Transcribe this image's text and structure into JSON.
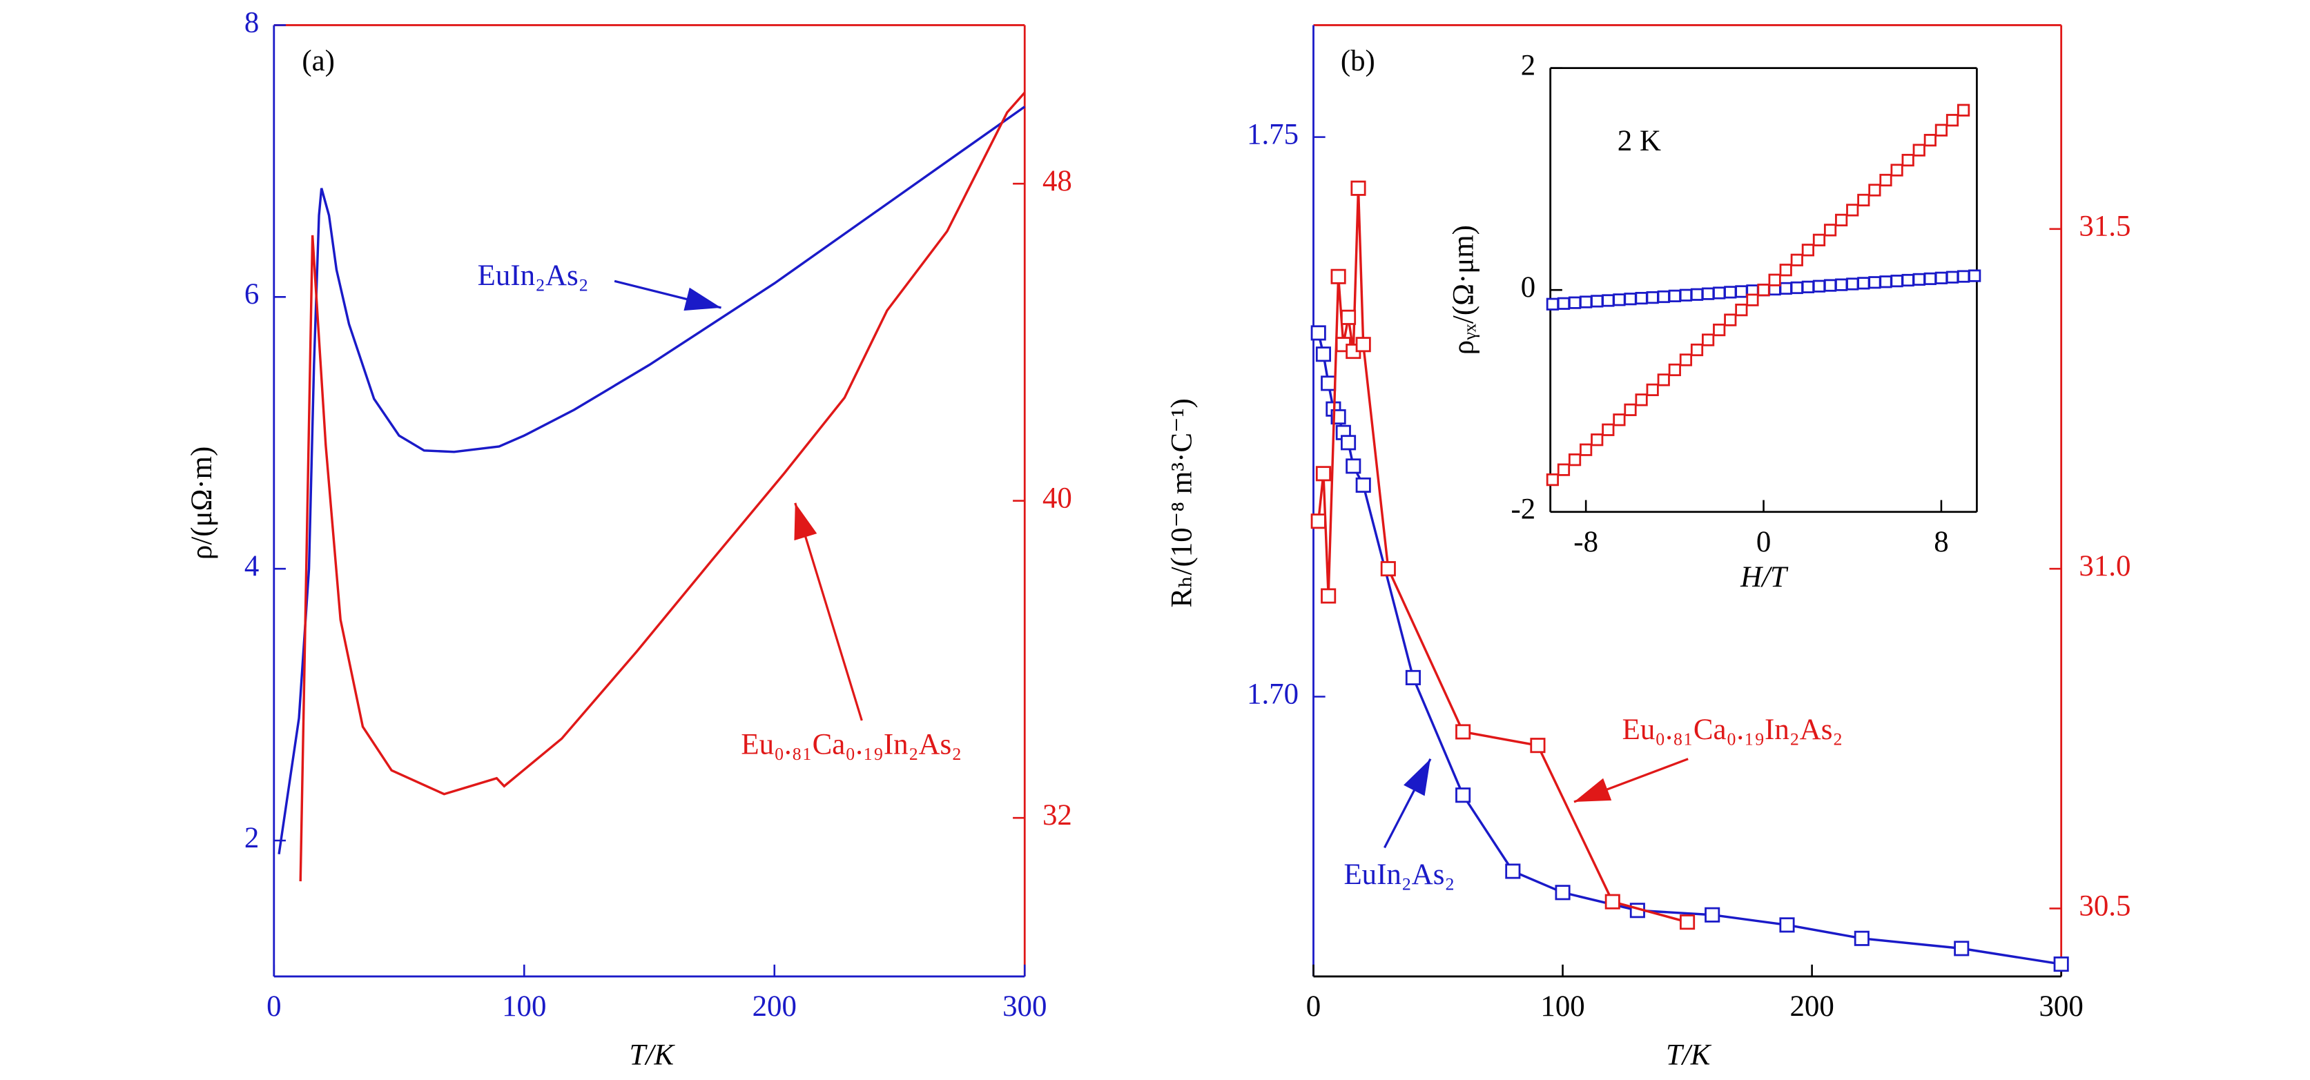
{
  "chart_data": [
    {
      "type": "line",
      "panel_label": "(a)",
      "xlabel": "T/K",
      "ylabel": "ρ/(μΩ·m)",
      "xlim": [
        0,
        300
      ],
      "xticks": [
        0,
        100,
        200,
        300
      ],
      "ylim": [
        1,
        8
      ],
      "yticks": [
        2,
        4,
        6,
        8
      ],
      "y2lim": [
        28,
        52
      ],
      "y2ticks": [
        32,
        40,
        48
      ],
      "spine_colors": {
        "left": "#1a1ac8",
        "right": "#e01818",
        "bottom": "#1a1ac8",
        "top": "#e01818"
      },
      "markers": false,
      "series": [
        {
          "name": "EuIn₂As₂",
          "color": "#1a1ac8",
          "axis": "y",
          "x": [
            2,
            10,
            14,
            16,
            18,
            19,
            22,
            25,
            30,
            40,
            50,
            60,
            72,
            90,
            100,
            120,
            150,
            200,
            250,
            300
          ],
          "values": [
            1.9,
            2.9,
            4,
            5.5,
            6.6,
            6.8,
            6.6,
            6.2,
            5.8,
            5.25,
            4.98,
            4.87,
            4.86,
            4.9,
            4.98,
            5.17,
            5.5,
            6.1,
            6.75,
            7.4
          ]
        },
        {
          "name": "Eu₀.₈₁Ca₀.₁₉In₂As₂",
          "color": "#e01818",
          "axis": "y2",
          "x": [
            10.6,
            15.4,
            20.7,
            26.6,
            35.5,
            47,
            68,
            89,
            92,
            115,
            145,
            175,
            204,
            228,
            245,
            269,
            293,
            300
          ],
          "values": [
            30.4,
            46.7,
            41.4,
            37,
            34.3,
            33.2,
            32.6,
            33.0,
            32.8,
            34,
            36.2,
            38.5,
            40.7,
            42.6,
            44.8,
            46.8,
            49.8,
            50.3
          ]
        }
      ]
    },
    {
      "type": "line",
      "panel_label": "(b)",
      "xlabel": "T/K",
      "ylabel": "Rₕ/(10⁻⁸ m³·C⁻¹)",
      "xlim": [
        0,
        300
      ],
      "xticks": [
        0,
        100,
        200,
        300
      ],
      "ylim": [
        1.675,
        1.76
      ],
      "yticks": [
        {
          "value": 1.7,
          "label": "1.70"
        },
        1.75
      ],
      "y2lim": [
        30.4,
        31.8
      ],
      "y2ticks": [
        30.5,
        {
          "value": 31,
          "label": "31.0"
        },
        31.5
      ],
      "spine_colors": {
        "left": "#1a1ac8",
        "right": "#e01818",
        "bottom": "#000000",
        "top": "#e01818"
      },
      "markers": true,
      "series": [
        {
          "name": "EuIn₂As₂",
          "color": "#1a1ac8",
          "axis": "y",
          "x": [
            2,
            4,
            6,
            8,
            10,
            12,
            14,
            16,
            20,
            40,
            60,
            80,
            100,
            130,
            160,
            190,
            220,
            260,
            300
          ],
          "values": [
            1.7325,
            1.7306,
            1.728,
            1.7257,
            1.725,
            1.7236,
            1.7227,
            1.7206,
            1.7189,
            1.7017,
            1.6912,
            1.6844,
            1.6825,
            1.6809,
            1.6805,
            1.6796,
            1.6784,
            1.6775,
            1.6761
          ]
        },
        {
          "name": "Eu₀.₈₁Ca₀.₁₉In₂As₂",
          "color": "#e01818",
          "axis": "y2",
          "x": [
            2,
            4,
            6,
            10,
            12,
            14,
            16,
            18,
            20,
            30,
            60,
            90,
            120,
            150
          ],
          "values": [
            31.07,
            31.14,
            30.96,
            31.43,
            31.33,
            31.37,
            31.32,
            31.56,
            31.33,
            31.0,
            30.76,
            30.74,
            30.51,
            30.48
          ]
        }
      ]
    },
    {
      "type": "scatter",
      "annotation": "2 K",
      "xlabel": "H/T",
      "ylabel": "ρᵧₓ/(Ω·μm)",
      "xlim": [
        -9.6,
        9.6
      ],
      "xticks": [
        -8,
        0,
        8
      ],
      "ylim": [
        -2,
        2
      ],
      "yticks": [
        -2,
        0,
        2
      ],
      "spine_colors": {
        "left": "#000000",
        "right": "#000000",
        "bottom": "#000000",
        "top": "#000000"
      },
      "markers": true,
      "series": [
        {
          "color": "#1a1ac8",
          "axis": "y",
          "x": [
            -9.5,
            -9,
            -8.5,
            -8,
            -7.5,
            -7,
            -6.5,
            -6,
            -5.5,
            -5,
            -4.5,
            -4,
            -3.5,
            -3,
            -2.5,
            -2,
            -1.5,
            -1,
            -0.5,
            0,
            0.5,
            1,
            1.5,
            2,
            2.5,
            3,
            3.5,
            4,
            4.5,
            5,
            5.5,
            6,
            6.5,
            7,
            7.5,
            8,
            8.5,
            9,
            9.5
          ],
          "values": [
            -0.128,
            -0.122,
            -0.115,
            -0.108,
            -0.101,
            -0.095,
            -0.088,
            -0.081,
            -0.074,
            -0.068,
            -0.061,
            -0.054,
            -0.047,
            -0.041,
            -0.034,
            -0.027,
            -0.02,
            -0.014,
            -0.007,
            0,
            0.007,
            0.014,
            0.02,
            0.027,
            0.034,
            0.041,
            0.047,
            0.054,
            0.061,
            0.068,
            0.074,
            0.081,
            0.088,
            0.095,
            0.101,
            0.108,
            0.115,
            0.122,
            0.128
          ]
        },
        {
          "color": "#e01818",
          "axis": "y",
          "x": [
            -9.5,
            -9,
            -8.5,
            -8,
            -7.5,
            -7,
            -6.5,
            -6,
            -5.5,
            -5,
            -4.5,
            -4,
            -3.5,
            -3,
            -2.5,
            -2,
            -1.5,
            -1,
            -0.5,
            0,
            0.5,
            1,
            1.5,
            2,
            2.5,
            3,
            3.5,
            4,
            4.5,
            5,
            5.5,
            6,
            6.5,
            7,
            7.5,
            8,
            8.5,
            9
          ],
          "values": [
            -1.71,
            -1.62,
            -1.53,
            -1.44,
            -1.35,
            -1.26,
            -1.17,
            -1.08,
            -0.99,
            -0.9,
            -0.81,
            -0.72,
            -0.63,
            -0.54,
            -0.45,
            -0.36,
            -0.27,
            -0.18,
            -0.09,
            0,
            0.09,
            0.18,
            0.27,
            0.36,
            0.45,
            0.54,
            0.63,
            0.72,
            0.81,
            0.9,
            0.99,
            1.08,
            1.17,
            1.26,
            1.35,
            1.44,
            1.53,
            1.62
          ]
        }
      ]
    }
  ]
}
